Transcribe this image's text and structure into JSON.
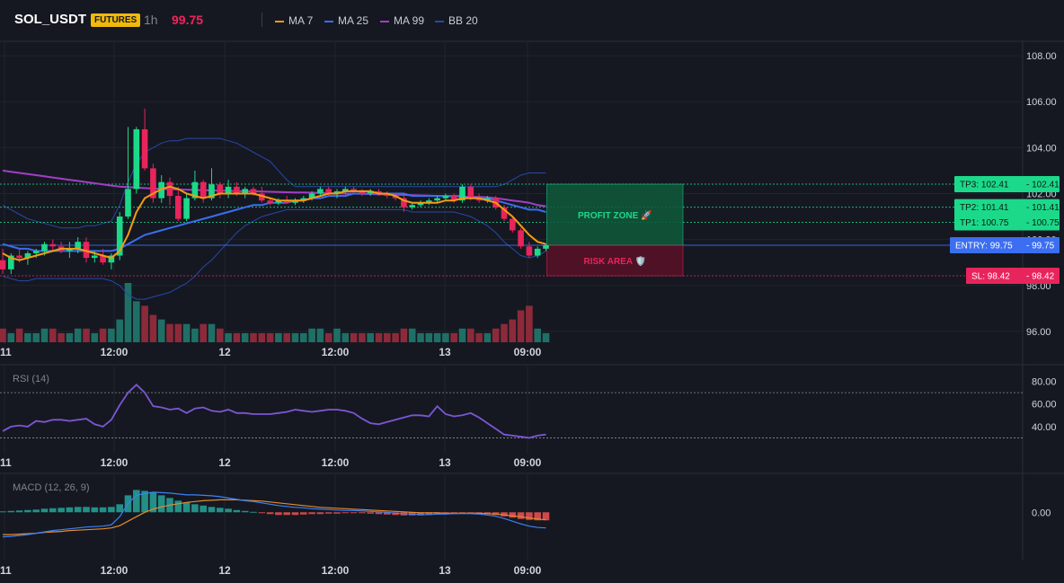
{
  "header": {
    "symbol": "SOL_USDT",
    "badge": "FUTURES",
    "timeframe": "1h",
    "price": "99.75",
    "legend": [
      {
        "label": "MA 7",
        "color": "#f39c12"
      },
      {
        "label": "MA 25",
        "color": "#3b6ef0"
      },
      {
        "label": "MA 99",
        "color": "#a23fc4"
      },
      {
        "label": "BB 20",
        "color": "#2748a8"
      }
    ]
  },
  "colors": {
    "up": "#1cd98a",
    "down": "#e8245c",
    "vol_up": "#1f6f66",
    "vol_down": "#8c2a3a",
    "rsi": "#7c56d4",
    "macd": "#3b82f6",
    "signal": "#e68a2e",
    "hist_up": "#26a69a",
    "hist_down": "#ef5350"
  },
  "zones": {
    "profit_label": "PROFIT ZONE 🚀",
    "risk_label": "RISK AREA 🛡️"
  },
  "levels": [
    {
      "name": "TP3",
      "label": "TP3: 102.41",
      "price": 102.41,
      "axis": "102.41",
      "color": "#1cd98a"
    },
    {
      "name": "TP2",
      "label": "TP2: 101.41",
      "price": 101.41,
      "axis": "101.41",
      "color": "#1cd98a"
    },
    {
      "name": "TP1",
      "label": "TP1: 100.75",
      "price": 100.75,
      "axis": "100.75",
      "color": "#1cd98a"
    },
    {
      "name": "ENTRY",
      "label": "ENTRY: 99.75",
      "price": 99.75,
      "axis": "99.75",
      "color": "#3b6ef0"
    },
    {
      "name": "SL",
      "label": "SL: 98.42",
      "price": 98.42,
      "axis": "98.42",
      "color": "#e8245c"
    }
  ],
  "chart_data": [
    {
      "type": "candlestick",
      "title": "",
      "ylim": [
        95.8,
        108.2
      ],
      "y_ticks": [
        "108.00",
        "106.00",
        "104.00",
        "102.00",
        "100.00",
        "98.00",
        "96.00"
      ],
      "x_ticks": [
        "11",
        "12:00",
        "12",
        "12:00",
        "13",
        "09:00"
      ],
      "candles": [
        {
          "o": 99.1,
          "h": 99.6,
          "l": 98.5,
          "c": 98.7
        },
        {
          "o": 98.7,
          "h": 99.4,
          "l": 98.5,
          "c": 99.3
        },
        {
          "o": 99.3,
          "h": 99.6,
          "l": 99.0,
          "c": 99.2
        },
        {
          "o": 99.2,
          "h": 99.5,
          "l": 98.9,
          "c": 99.4
        },
        {
          "o": 99.4,
          "h": 99.6,
          "l": 99.2,
          "c": 99.5
        },
        {
          "o": 99.5,
          "h": 99.9,
          "l": 99.3,
          "c": 99.8
        },
        {
          "o": 99.8,
          "h": 100.0,
          "l": 99.5,
          "c": 99.7
        },
        {
          "o": 99.7,
          "h": 99.9,
          "l": 99.4,
          "c": 99.5
        },
        {
          "o": 99.5,
          "h": 99.9,
          "l": 99.2,
          "c": 99.6
        },
        {
          "o": 99.6,
          "h": 100.1,
          "l": 99.4,
          "c": 99.9
        },
        {
          "o": 99.9,
          "h": 100.1,
          "l": 99.0,
          "c": 99.2
        },
        {
          "o": 99.2,
          "h": 99.5,
          "l": 99.0,
          "c": 99.3
        },
        {
          "o": 99.3,
          "h": 99.6,
          "l": 98.9,
          "c": 99.0
        },
        {
          "o": 99.0,
          "h": 99.4,
          "l": 98.7,
          "c": 99.3
        },
        {
          "o": 99.3,
          "h": 101.2,
          "l": 99.1,
          "c": 101.0
        },
        {
          "o": 101.0,
          "h": 104.9,
          "l": 100.9,
          "c": 102.2
        },
        {
          "o": 102.2,
          "h": 104.9,
          "l": 102.0,
          "c": 104.8
        },
        {
          "o": 104.8,
          "h": 105.7,
          "l": 103.0,
          "c": 103.1
        },
        {
          "o": 103.1,
          "h": 103.3,
          "l": 101.6,
          "c": 101.8
        },
        {
          "o": 101.8,
          "h": 102.8,
          "l": 101.6,
          "c": 102.5
        },
        {
          "o": 102.5,
          "h": 102.7,
          "l": 101.5,
          "c": 101.9
        },
        {
          "o": 101.9,
          "h": 102.3,
          "l": 100.8,
          "c": 100.9
        },
        {
          "o": 100.9,
          "h": 102.0,
          "l": 100.8,
          "c": 101.8
        },
        {
          "o": 101.8,
          "h": 103.0,
          "l": 101.7,
          "c": 102.5
        },
        {
          "o": 102.5,
          "h": 102.6,
          "l": 101.6,
          "c": 101.8
        },
        {
          "o": 101.8,
          "h": 103.1,
          "l": 101.7,
          "c": 102.4
        },
        {
          "o": 102.4,
          "h": 102.5,
          "l": 101.8,
          "c": 102.0
        },
        {
          "o": 102.0,
          "h": 102.6,
          "l": 101.8,
          "c": 102.3
        },
        {
          "o": 102.3,
          "h": 102.5,
          "l": 101.9,
          "c": 102.0
        },
        {
          "o": 102.0,
          "h": 102.3,
          "l": 101.8,
          "c": 102.2
        },
        {
          "o": 102.2,
          "h": 102.3,
          "l": 101.9,
          "c": 102.0
        },
        {
          "o": 102.0,
          "h": 102.3,
          "l": 101.6,
          "c": 101.7
        },
        {
          "o": 101.7,
          "h": 101.8,
          "l": 101.5,
          "c": 101.6
        },
        {
          "o": 101.6,
          "h": 101.8,
          "l": 101.5,
          "c": 101.7
        },
        {
          "o": 101.7,
          "h": 101.9,
          "l": 101.6,
          "c": 101.6
        },
        {
          "o": 101.6,
          "h": 101.8,
          "l": 101.5,
          "c": 101.7
        },
        {
          "o": 101.7,
          "h": 101.9,
          "l": 101.6,
          "c": 101.8
        },
        {
          "o": 101.8,
          "h": 102.1,
          "l": 101.7,
          "c": 102.0
        },
        {
          "o": 102.0,
          "h": 102.3,
          "l": 101.9,
          "c": 102.2
        },
        {
          "o": 102.2,
          "h": 102.3,
          "l": 101.9,
          "c": 102.0
        },
        {
          "o": 102.0,
          "h": 102.2,
          "l": 101.8,
          "c": 102.1
        },
        {
          "o": 102.1,
          "h": 102.3,
          "l": 102.0,
          "c": 102.2
        },
        {
          "o": 102.2,
          "h": 102.3,
          "l": 102.0,
          "c": 102.1
        },
        {
          "o": 102.1,
          "h": 102.2,
          "l": 101.9,
          "c": 102.0
        },
        {
          "o": 102.0,
          "h": 102.2,
          "l": 101.9,
          "c": 102.1
        },
        {
          "o": 102.1,
          "h": 102.2,
          "l": 101.9,
          "c": 102.0
        },
        {
          "o": 102.0,
          "h": 102.1,
          "l": 101.8,
          "c": 101.9
        },
        {
          "o": 101.9,
          "h": 102.0,
          "l": 101.7,
          "c": 101.8
        },
        {
          "o": 101.8,
          "h": 101.9,
          "l": 101.2,
          "c": 101.4
        },
        {
          "o": 101.4,
          "h": 101.6,
          "l": 101.3,
          "c": 101.5
        },
        {
          "o": 101.5,
          "h": 101.7,
          "l": 101.4,
          "c": 101.6
        },
        {
          "o": 101.6,
          "h": 101.8,
          "l": 101.5,
          "c": 101.7
        },
        {
          "o": 101.7,
          "h": 101.9,
          "l": 101.6,
          "c": 101.8
        },
        {
          "o": 101.8,
          "h": 102.0,
          "l": 101.7,
          "c": 101.9
        },
        {
          "o": 101.9,
          "h": 102.0,
          "l": 101.6,
          "c": 101.7
        },
        {
          "o": 101.7,
          "h": 102.4,
          "l": 101.6,
          "c": 102.3
        },
        {
          "o": 102.3,
          "h": 102.4,
          "l": 101.7,
          "c": 101.8
        },
        {
          "o": 101.8,
          "h": 102.0,
          "l": 101.6,
          "c": 101.7
        },
        {
          "o": 101.7,
          "h": 101.9,
          "l": 101.6,
          "c": 101.8
        },
        {
          "o": 101.8,
          "h": 101.9,
          "l": 101.3,
          "c": 101.4
        },
        {
          "o": 101.4,
          "h": 101.5,
          "l": 100.8,
          "c": 100.9
        },
        {
          "o": 100.9,
          "h": 101.0,
          "l": 100.3,
          "c": 100.4
        },
        {
          "o": 100.4,
          "h": 100.5,
          "l": 99.6,
          "c": 99.7
        },
        {
          "o": 99.7,
          "h": 99.9,
          "l": 99.2,
          "c": 99.3
        },
        {
          "o": 99.3,
          "h": 99.7,
          "l": 99.2,
          "c": 99.6
        },
        {
          "o": 99.6,
          "h": 99.8,
          "l": 99.5,
          "c": 99.75
        }
      ],
      "volume": [
        3,
        2,
        3,
        2,
        2,
        3,
        3,
        2,
        2,
        3,
        3,
        2,
        3,
        3,
        5,
        13,
        9,
        8,
        6,
        5,
        4,
        4,
        4,
        3,
        4,
        4,
        3,
        2,
        2,
        2,
        2,
        2,
        2,
        2,
        2,
        2,
        2,
        3,
        3,
        2,
        3,
        2,
        2,
        2,
        2,
        2,
        2,
        2,
        3,
        3,
        2,
        2,
        2,
        2,
        2,
        3,
        3,
        2,
        2,
        3,
        4,
        5,
        7,
        8,
        3,
        2
      ],
      "ma7": [
        99.4,
        99.2,
        99.1,
        99.2,
        99.3,
        99.4,
        99.5,
        99.6,
        99.6,
        99.6,
        99.5,
        99.4,
        99.3,
        99.2,
        99.5,
        100.2,
        101.2,
        101.8,
        102.0,
        102.2,
        102.3,
        102.2,
        102.0,
        101.9,
        101.8,
        101.9,
        102.0,
        102.0,
        102.0,
        102.0,
        102.0,
        101.9,
        101.8,
        101.7,
        101.7,
        101.7,
        101.7,
        101.8,
        101.9,
        102.0,
        102.0,
        102.1,
        102.1,
        102.1,
        102.1,
        102.0,
        102.0,
        101.9,
        101.7,
        101.6,
        101.6,
        101.6,
        101.6,
        101.7,
        101.7,
        101.8,
        101.8,
        101.8,
        101.7,
        101.6,
        101.3,
        101.0,
        100.6,
        100.2,
        99.9,
        99.8
      ],
      "ma25": [
        99.8,
        99.7,
        99.6,
        99.6,
        99.5,
        99.5,
        99.5,
        99.5,
        99.5,
        99.5,
        99.5,
        99.5,
        99.5,
        99.5,
        99.6,
        99.8,
        100.0,
        100.2,
        100.3,
        100.4,
        100.5,
        100.6,
        100.7,
        100.8,
        100.9,
        101.0,
        101.1,
        101.2,
        101.3,
        101.4,
        101.5,
        101.5,
        101.6,
        101.6,
        101.6,
        101.7,
        101.7,
        101.8,
        101.8,
        101.9,
        101.9,
        101.9,
        102.0,
        102.0,
        102.0,
        102.0,
        102.0,
        102.0,
        102.0,
        101.9,
        101.9,
        101.9,
        101.9,
        101.9,
        101.9,
        101.9,
        101.8,
        101.8,
        101.8,
        101.7,
        101.6,
        101.5,
        101.4,
        101.3,
        101.3,
        101.2
      ],
      "ma99": [
        103.0,
        102.95,
        102.9,
        102.85,
        102.8,
        102.75,
        102.7,
        102.65,
        102.6,
        102.55,
        102.5,
        102.45,
        102.4,
        102.35,
        102.3,
        102.28,
        102.26,
        102.24,
        102.22,
        102.2,
        102.19,
        102.18,
        102.17,
        102.16,
        102.15,
        102.14,
        102.13,
        102.12,
        102.11,
        102.1,
        102.1,
        102.09,
        102.08,
        102.07,
        102.06,
        102.05,
        102.05,
        102.04,
        102.03,
        102.02,
        102.01,
        102.0,
        102.0,
        101.99,
        101.98,
        101.97,
        101.96,
        101.95,
        101.94,
        101.93,
        101.92,
        101.91,
        101.9,
        101.89,
        101.88,
        101.87,
        101.86,
        101.85,
        101.84,
        101.8,
        101.75,
        101.7,
        101.65,
        101.6,
        101.5,
        101.45
      ],
      "bb_upper": [
        101.5,
        101.3,
        101.1,
        100.9,
        100.8,
        100.7,
        100.6,
        100.5,
        100.5,
        100.5,
        100.6,
        100.6,
        100.7,
        100.8,
        101.5,
        102.5,
        103.3,
        103.8,
        104.0,
        104.2,
        104.3,
        104.3,
        104.4,
        104.4,
        104.4,
        104.4,
        104.4,
        104.3,
        104.2,
        104.0,
        103.8,
        103.6,
        103.4,
        103.0,
        102.6,
        102.3,
        102.3,
        102.3,
        102.3,
        102.3,
        102.3,
        102.3,
        102.3,
        102.3,
        102.3,
        102.3,
        102.3,
        102.3,
        102.3,
        102.3,
        102.3,
        102.3,
        102.3,
        102.3,
        102.3,
        102.3,
        102.3,
        102.3,
        102.3,
        102.3,
        102.4,
        102.6,
        102.8,
        102.9,
        102.9,
        102.9
      ],
      "bb_lower": [
        98.4,
        98.3,
        98.2,
        98.2,
        98.3,
        98.3,
        98.3,
        98.3,
        98.3,
        98.3,
        98.3,
        98.3,
        98.3,
        98.2,
        98.0,
        97.6,
        97.4,
        97.4,
        97.5,
        97.6,
        97.7,
        97.9,
        98.1,
        98.4,
        98.8,
        99.1,
        99.5,
        99.9,
        100.3,
        100.6,
        100.8,
        101.0,
        101.1,
        101.2,
        101.3,
        101.3,
        101.3,
        101.3,
        101.3,
        101.3,
        101.3,
        101.3,
        101.3,
        101.3,
        101.3,
        101.3,
        101.3,
        101.3,
        101.3,
        101.2,
        101.2,
        101.2,
        101.2,
        101.2,
        101.2,
        101.1,
        101.0,
        100.8,
        100.6,
        100.3,
        99.9,
        99.6,
        99.3,
        99.2,
        99.3,
        99.5
      ]
    },
    {
      "type": "line",
      "title": "RSI (14)",
      "ylim": [
        20,
        90
      ],
      "y_ticks": [
        "80.00",
        "60.00",
        "40.00"
      ],
      "x_ticks": [
        "11",
        "12:00",
        "12",
        "12:00",
        "13",
        "09:00"
      ],
      "guides": [
        70,
        30
      ],
      "values": [
        36,
        40,
        41,
        40,
        45,
        44,
        46,
        46,
        45,
        46,
        47,
        42,
        40,
        46,
        59,
        70,
        77,
        70,
        58,
        57,
        55,
        56,
        52,
        56,
        57,
        54,
        53,
        55,
        52,
        52,
        51,
        51,
        51,
        52,
        53,
        55,
        54,
        53,
        54,
        55,
        55,
        54,
        52,
        47,
        43,
        42,
        44,
        46,
        48,
        50,
        50,
        49,
        58,
        51,
        49,
        50,
        52,
        48,
        43,
        38,
        33,
        32,
        31,
        30,
        32,
        33
      ]
    },
    {
      "type": "bar",
      "title": "MACD (12, 26, 9)",
      "ylim": [
        -0.9,
        0.75
      ],
      "y_ticks": [
        "0.00"
      ],
      "x_ticks": [
        "11",
        "12:00",
        "12",
        "12:00",
        "13",
        "09:00"
      ],
      "histogram": [
        0.02,
        0.03,
        0.04,
        0.05,
        0.06,
        0.08,
        0.09,
        0.1,
        0.11,
        0.12,
        0.12,
        0.11,
        0.11,
        0.12,
        0.18,
        0.38,
        0.5,
        0.48,
        0.45,
        0.38,
        0.32,
        0.26,
        0.22,
        0.18,
        0.15,
        0.12,
        0.1,
        0.08,
        0.05,
        0.03,
        0.01,
        -0.02,
        -0.04,
        -0.06,
        -0.06,
        -0.06,
        -0.05,
        -0.04,
        -0.04,
        -0.03,
        -0.03,
        -0.02,
        -0.02,
        -0.02,
        -0.03,
        -0.04,
        -0.05,
        -0.06,
        -0.07,
        -0.07,
        -0.07,
        -0.06,
        -0.05,
        -0.04,
        -0.04,
        -0.03,
        -0.03,
        -0.03,
        -0.04,
        -0.06,
        -0.09,
        -0.12,
        -0.15,
        -0.17,
        -0.18,
        -0.18
      ],
      "macd": [
        -0.55,
        -0.54,
        -0.52,
        -0.5,
        -0.47,
        -0.44,
        -0.41,
        -0.39,
        -0.37,
        -0.35,
        -0.33,
        -0.32,
        -0.31,
        -0.28,
        -0.1,
        0.2,
        0.38,
        0.42,
        0.45,
        0.44,
        0.43,
        0.41,
        0.39,
        0.39,
        0.38,
        0.37,
        0.35,
        0.32,
        0.29,
        0.26,
        0.24,
        0.21,
        0.18,
        0.15,
        0.13,
        0.11,
        0.1,
        0.08,
        0.07,
        0.06,
        0.05,
        0.04,
        0.04,
        0.03,
        0.02,
        0.01,
        0.0,
        -0.02,
        -0.03,
        -0.04,
        -0.05,
        -0.05,
        -0.04,
        -0.04,
        -0.03,
        -0.03,
        -0.03,
        -0.04,
        -0.06,
        -0.09,
        -0.14,
        -0.2,
        -0.26,
        -0.31,
        -0.34,
        -0.35
      ],
      "signal": [
        -0.5,
        -0.5,
        -0.49,
        -0.48,
        -0.47,
        -0.45,
        -0.44,
        -0.43,
        -0.41,
        -0.4,
        -0.39,
        -0.38,
        -0.37,
        -0.35,
        -0.3,
        -0.2,
        -0.1,
        0.0,
        0.07,
        0.12,
        0.16,
        0.19,
        0.22,
        0.24,
        0.26,
        0.27,
        0.28,
        0.28,
        0.28,
        0.27,
        0.26,
        0.25,
        0.23,
        0.21,
        0.19,
        0.17,
        0.15,
        0.13,
        0.11,
        0.1,
        0.09,
        0.08,
        0.07,
        0.06,
        0.05,
        0.04,
        0.03,
        0.02,
        0.01,
        0.0,
        -0.01,
        -0.01,
        -0.01,
        -0.02,
        -0.02,
        -0.02,
        -0.02,
        -0.02,
        -0.03,
        -0.04,
        -0.06,
        -0.08,
        -0.1,
        -0.13,
        -0.15,
        -0.17
      ]
    }
  ]
}
